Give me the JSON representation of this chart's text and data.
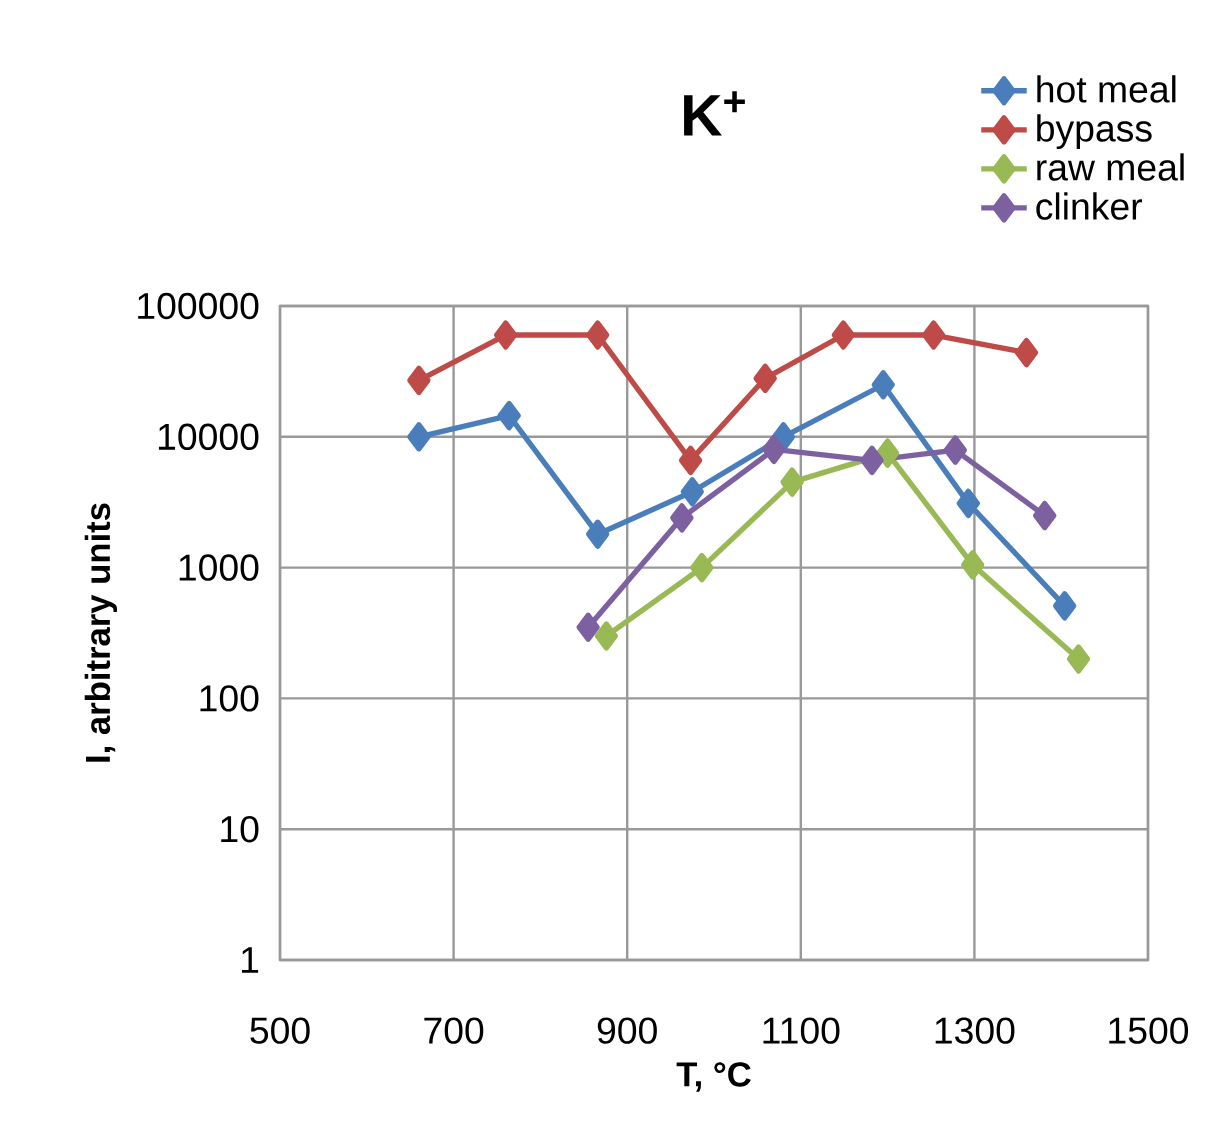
{
  "chart_data": {
    "type": "line",
    "title": "K$^{+}$",
    "xlabel": "T, °C",
    "ylabel": "I, arbitrary units",
    "xlim": [
      500,
      1500
    ],
    "xticks": [
      500,
      700,
      900,
      1100,
      1300,
      1500
    ],
    "ylim": [
      1,
      100000
    ],
    "yticks": [
      1,
      10,
      100,
      1000,
      10000,
      100000
    ],
    "log": "y",
    "grid": true,
    "legend": "top right",
    "marker": "diamond",
    "line_style": "solid",
    "series": [
      {
        "name": "hot meal",
        "color": "#4a7ebb",
        "x": [
          660,
          764,
          866,
          975,
          1080,
          1195,
          1293,
          1404
        ],
        "values": [
          10000,
          14500,
          1800,
          3800,
          10000,
          25000,
          3100,
          510
        ]
      },
      {
        "name": "bypass",
        "color": "#be4b48",
        "x": [
          660,
          760,
          866,
          973,
          1059,
          1149,
          1253,
          1360
        ],
        "values": [
          27000,
          60000,
          60000,
          6600,
          28000,
          60000,
          60000,
          44000
        ]
      },
      {
        "name": "raw meal",
        "color": "#98b954",
        "x": [
          876,
          986,
          1090,
          1200,
          1298,
          1420
        ],
        "values": [
          300,
          1000,
          4500,
          7500,
          1050,
          200
        ]
      },
      {
        "name": "clinker",
        "color": "#7d60a0",
        "x": [
          855,
          963,
          1069,
          1182,
          1278,
          1381
        ],
        "values": [
          350,
          2400,
          8000,
          6600,
          7900,
          2500
        ]
      }
    ]
  }
}
